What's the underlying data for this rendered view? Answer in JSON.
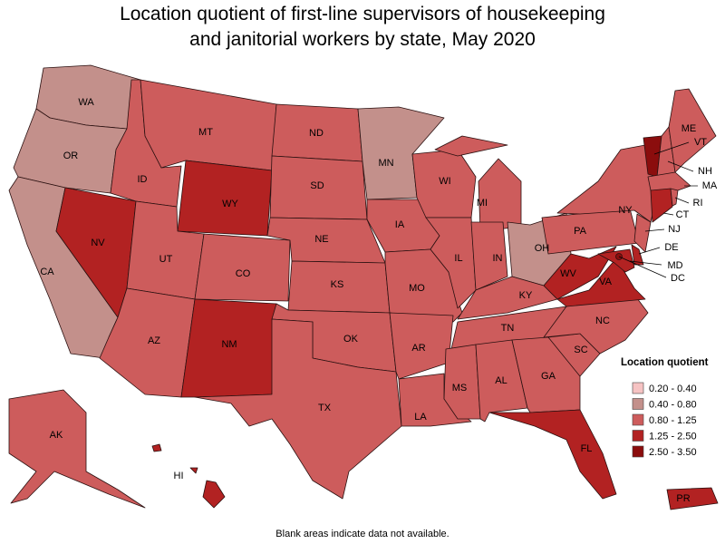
{
  "title_lines": [
    "Location quotient of first-line supervisors of housekeeping",
    "and janitorial workers by state, May 2020"
  ],
  "legend": {
    "title": "Location quotient",
    "bins": [
      {
        "label": "0.20 - 0.40",
        "color": "#f6c3c3"
      },
      {
        "label": "0.40 - 0.80",
        "color": "#c3908b"
      },
      {
        "label": "0.80 - 1.25",
        "color": "#cd5c5c"
      },
      {
        "label": "1.25 - 2.50",
        "color": "#b22222"
      },
      {
        "label": "2.50 - 3.50",
        "color": "#8b0d0d"
      }
    ]
  },
  "states": [
    {
      "label": "WA",
      "class": 1
    },
    {
      "label": "OR",
      "class": 1
    },
    {
      "label": "CA",
      "class": 1
    },
    {
      "label": "NV",
      "class": 3
    },
    {
      "label": "ID",
      "class": 2
    },
    {
      "label": "MT",
      "class": 2
    },
    {
      "label": "WY",
      "class": 3
    },
    {
      "label": "UT",
      "class": 2
    },
    {
      "label": "AZ",
      "class": 2
    },
    {
      "label": "CO",
      "class": 2
    },
    {
      "label": "NM",
      "class": 3
    },
    {
      "label": "ND",
      "class": 2
    },
    {
      "label": "SD",
      "class": 2
    },
    {
      "label": "NE",
      "class": 2
    },
    {
      "label": "KS",
      "class": 2
    },
    {
      "label": "OK",
      "class": 2
    },
    {
      "label": "TX",
      "class": 2
    },
    {
      "label": "MN",
      "class": 1
    },
    {
      "label": "IA",
      "class": 2
    },
    {
      "label": "MO",
      "class": 2
    },
    {
      "label": "AR",
      "class": 2
    },
    {
      "label": "LA",
      "class": 2
    },
    {
      "label": "WI",
      "class": 2
    },
    {
      "label": "IL",
      "class": 2
    },
    {
      "label": "MI",
      "class": 2
    },
    {
      "label": "IN",
      "class": 2
    },
    {
      "label": "OH",
      "class": 1
    },
    {
      "label": "KY",
      "class": 2
    },
    {
      "label": "TN",
      "class": 2
    },
    {
      "label": "MS",
      "class": 2
    },
    {
      "label": "AL",
      "class": 2
    },
    {
      "label": "GA",
      "class": 2
    },
    {
      "label": "FL",
      "class": 3
    },
    {
      "label": "SC",
      "class": 2
    },
    {
      "label": "NC",
      "class": 2
    },
    {
      "label": "VA",
      "class": 3
    },
    {
      "label": "WV",
      "class": 3
    },
    {
      "label": "PA",
      "class": 2
    },
    {
      "label": "NY",
      "class": 2
    },
    {
      "label": "VT",
      "class": 4
    },
    {
      "label": "NH",
      "class": 2
    },
    {
      "label": "ME",
      "class": 2
    },
    {
      "label": "MA",
      "class": 2
    },
    {
      "label": "CT",
      "class": 3
    },
    {
      "label": "RI",
      "class": 2
    },
    {
      "label": "NJ",
      "class": 2
    },
    {
      "label": "DE",
      "class": 3
    },
    {
      "label": "MD",
      "class": 3
    },
    {
      "label": "DC",
      "class": 4
    },
    {
      "label": "AK",
      "class": 2
    },
    {
      "label": "HI",
      "class": 3
    },
    {
      "label": "PR",
      "class": 3
    }
  ],
  "note": "Blank areas indicate data not available."
}
